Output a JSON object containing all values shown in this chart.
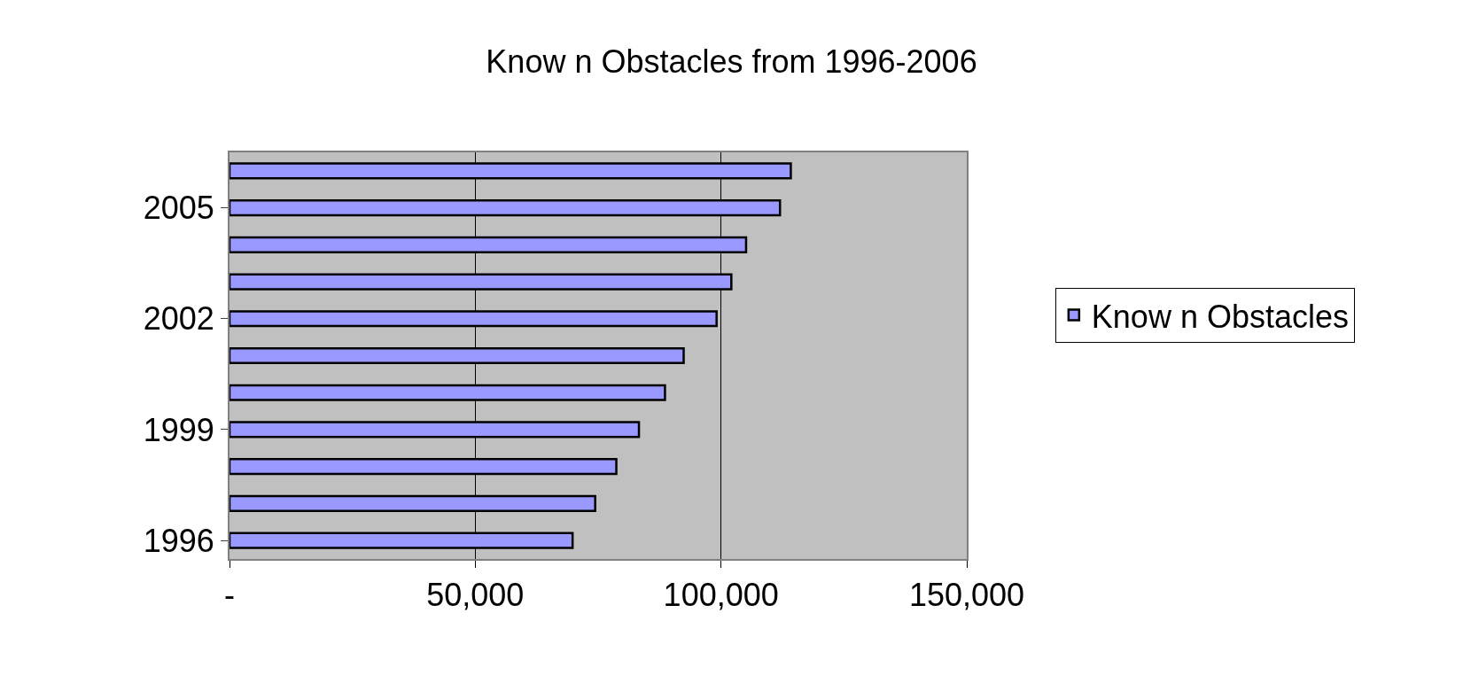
{
  "chart_data": {
    "type": "bar",
    "orientation": "horizontal",
    "title": "Know n Obstacles from 1996-2006",
    "categories": [
      null,
      "2005",
      null,
      null,
      "2002",
      null,
      null,
      "1999",
      null,
      null,
      "1996"
    ],
    "series": [
      {
        "name": "Know n Obstacles",
        "color": "#9999ff",
        "values": [
          114200,
          112000,
          105100,
          102100,
          99100,
          92400,
          88600,
          83300,
          78700,
          74400,
          69800
        ]
      }
    ],
    "xlim": [
      0,
      150000
    ],
    "xticks": [
      {
        "value": 0,
        "label": "-"
      },
      {
        "value": 50000,
        "label": "50,000"
      },
      {
        "value": 100000,
        "label": "100,000"
      },
      {
        "value": 150000,
        "label": "150,000"
      }
    ],
    "grid": "x",
    "legend": "right"
  }
}
